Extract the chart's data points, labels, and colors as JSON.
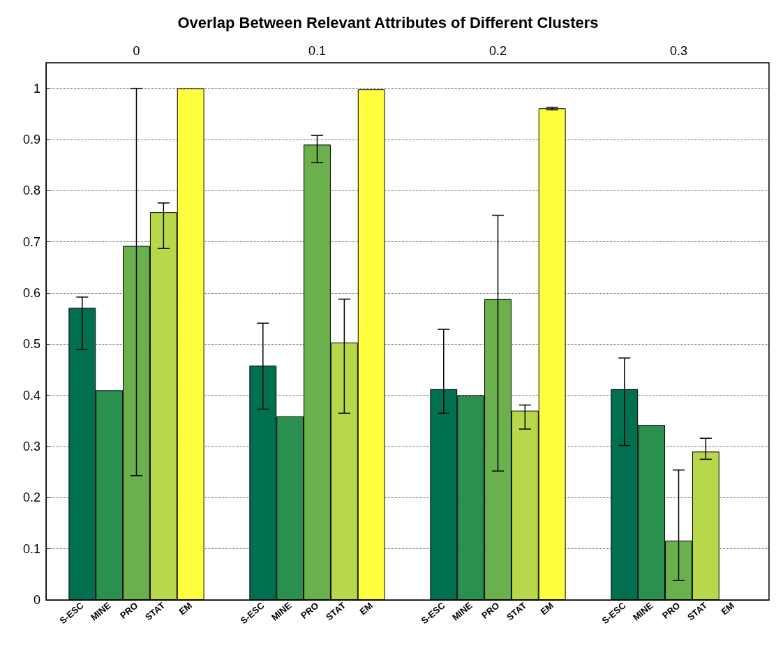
{
  "chart_data": {
    "type": "bar",
    "title": "Overlap Between Relevant Attributes of Different Clusters",
    "categories": [
      "0",
      "0.1",
      "0.2",
      "0.3"
    ],
    "series": [
      {
        "name": "S-ESC",
        "color": "#007050",
        "values": [
          0.571,
          0.458,
          0.412,
          0.412
        ],
        "errors": [
          [
            0.49,
            0.592
          ],
          [
            0.373,
            0.541
          ],
          [
            0.365,
            0.529
          ],
          [
            0.302,
            0.473
          ]
        ]
      },
      {
        "name": "MINE",
        "color": "#2a9050",
        "values": [
          0.41,
          0.359,
          0.4,
          0.342
        ]
      },
      {
        "name": "PRO",
        "color": "#6ab04c",
        "values": [
          0.692,
          0.89,
          0.588,
          0.116
        ],
        "errors": [
          [
            0.243,
            1.0
          ],
          [
            0.855,
            0.908
          ],
          [
            0.252,
            0.752
          ],
          [
            0.038,
            0.254
          ]
        ]
      },
      {
        "name": "STAT",
        "color": "#b8d84c",
        "values": [
          0.758,
          0.503,
          0.37,
          0.29
        ],
        "errors": [
          [
            0.687,
            0.776
          ],
          [
            0.365,
            0.588
          ],
          [
            0.334,
            0.381
          ],
          [
            0.275,
            0.316
          ]
        ]
      },
      {
        "name": "EM",
        "color": "#ffff40",
        "values": [
          1.0,
          0.998,
          0.961,
          0
        ],
        "errors": [
          null,
          null,
          [
            0.958,
            0.963
          ],
          null
        ]
      }
    ],
    "ylim": [
      0,
      1.05
    ],
    "yticks": [
      0,
      0.1,
      0.2,
      0.3,
      0.4,
      0.5,
      0.6,
      0.7,
      0.8,
      0.9,
      1
    ],
    "grid": "y"
  }
}
